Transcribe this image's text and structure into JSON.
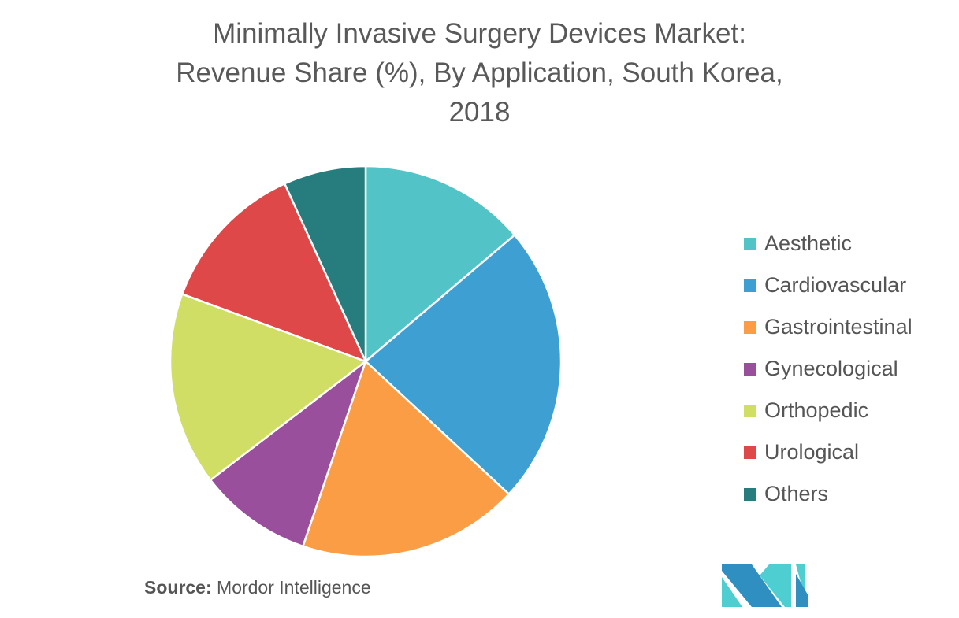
{
  "chart_data": {
    "type": "pie",
    "title_lines": [
      "Minimally Invasive Surgery Devices Market:",
      "Revenue Share (%), By Application, South Korea,",
      "2018"
    ],
    "categories": [
      "Aesthetic",
      "Cardiovascular",
      "Gastrointestinal",
      "Gynecological",
      "Orthopedic",
      "Urological",
      "Others"
    ],
    "values": [
      13.8,
      23.1,
      18.3,
      9.4,
      16.0,
      12.6,
      6.8
    ],
    "colors": [
      "#52C4C7",
      "#3E9FD2",
      "#FB9D44",
      "#9A4F9D",
      "#D0DE65",
      "#DF4849",
      "#277C7E"
    ],
    "legend_position": "right",
    "start": "12 o'clock, clockwise"
  },
  "source": {
    "label": "Source:",
    "text": " Mordor Intelligence"
  },
  "logo": {
    "text": "MI",
    "colors": [
      "#2E8FC0",
      "#4ECED0"
    ]
  }
}
